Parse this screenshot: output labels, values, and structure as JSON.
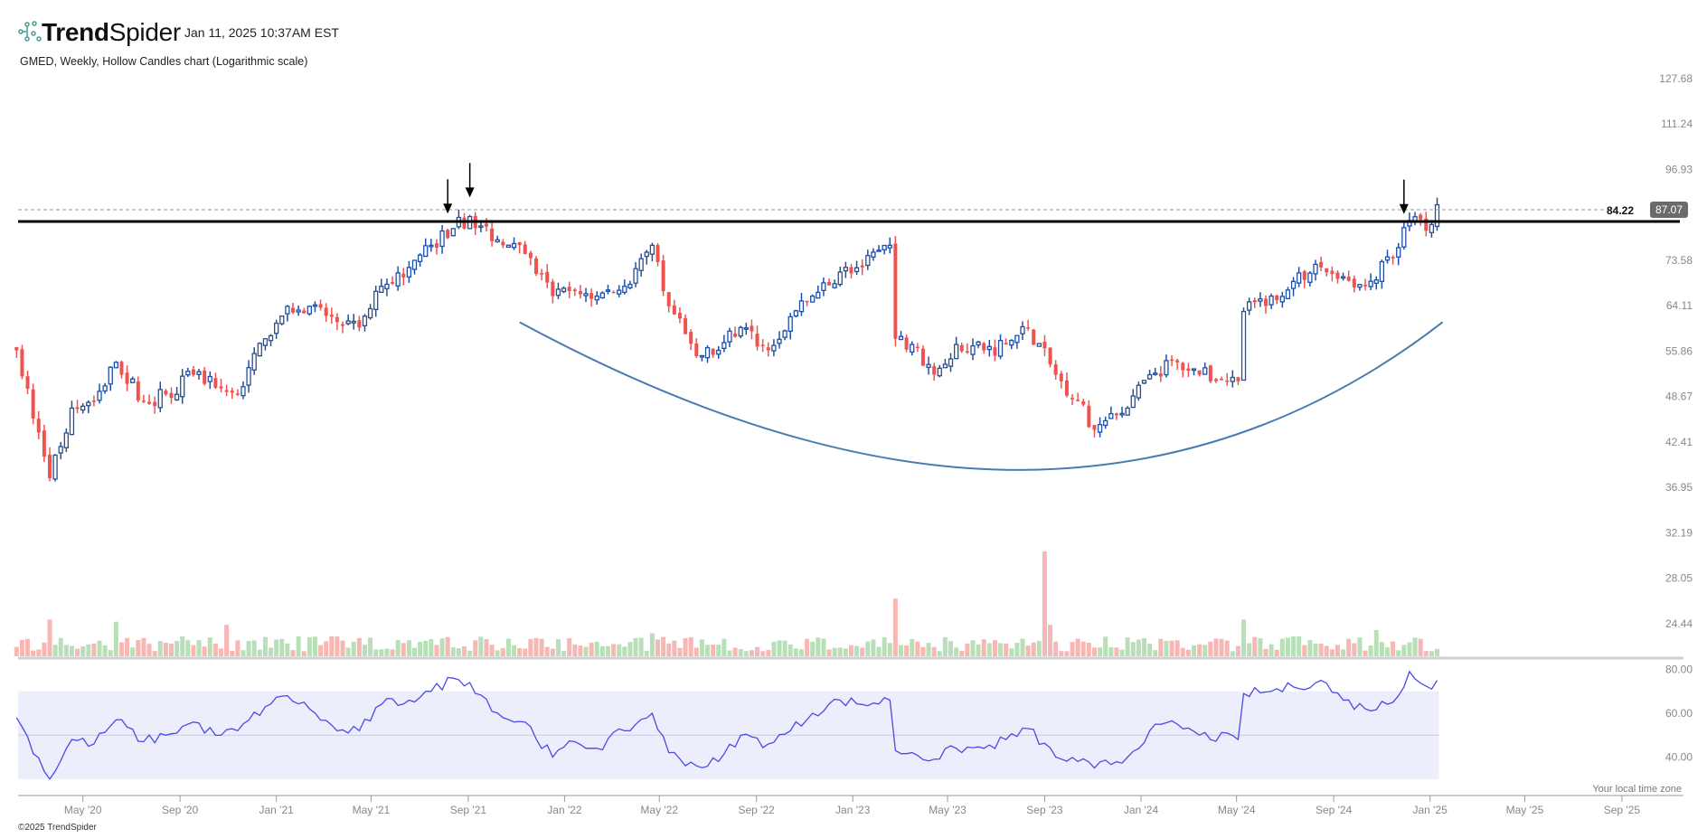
{
  "header": {
    "brand_bold": "Trend",
    "brand_light": "Spider",
    "timestamp": "Jan 11, 2025 10:37AM EST",
    "subtitle": "GMED, Weekly, Hollow Candles chart (Logarithmic scale)"
  },
  "footer": {
    "timezone_note": "Your local time zone",
    "copyright": "©2025 TrendSpider"
  },
  "colors": {
    "up": "#1f4fa3",
    "down": "#ef5350",
    "volume_up": "#b9dfb9",
    "volume_down": "#f7b7b5",
    "rsi_line": "#4a4ae6",
    "rsi_band": "#eceefb",
    "curve": "#4a7bb0",
    "resistance": "#000000",
    "badge": "#6b6b6b"
  },
  "chart_data": [
    {
      "type": "candlestick",
      "title": "GMED, Weekly, Hollow Candles chart (Logarithmic scale)",
      "scale": "log",
      "interval": "weekly",
      "ylim": [
        24.44,
        127.68
      ],
      "y_ticks": [
        "127.68",
        "111.24",
        "96.93",
        "84.22",
        "73.58",
        "64.11",
        "55.86",
        "48.67",
        "42.41",
        "36.95",
        "32.19",
        "28.05",
        "24.44"
      ],
      "x_ticks": [
        "May '20",
        "Sep '20",
        "Jan '21",
        "May '21",
        "Sep '21",
        "Jan '22",
        "May '22",
        "Sep '22",
        "Jan '23",
        "May '23",
        "Sep '23",
        "Jan '24",
        "May '24",
        "Sep '24",
        "Jan '25",
        "May '25",
        "Sep '25"
      ],
      "x_tick_dates": [
        "2020-05-01",
        "2020-09-01",
        "2021-01-01",
        "2021-05-01",
        "2021-09-01",
        "2022-01-01",
        "2022-05-01",
        "2022-09-01",
        "2023-01-01",
        "2023-05-01",
        "2023-09-01",
        "2024-01-01",
        "2024-05-01",
        "2024-09-01",
        "2025-01-01",
        "2025-05-01",
        "2025-09-01"
      ],
      "range": [
        "2020-02-07",
        "2025-01-10"
      ],
      "close_keypoints": [
        [
          "2020-02-07",
          56
        ],
        [
          "2020-03-20",
          38
        ],
        [
          "2020-04-17",
          47
        ],
        [
          "2020-05-15",
          48
        ],
        [
          "2020-06-12",
          54
        ],
        [
          "2020-07-17",
          48
        ],
        [
          "2020-08-14",
          49
        ],
        [
          "2020-09-18",
          52
        ],
        [
          "2020-10-16",
          50
        ],
        [
          "2020-11-13",
          49
        ],
        [
          "2020-12-18",
          58
        ],
        [
          "2021-01-15",
          64
        ],
        [
          "2021-02-12",
          64
        ],
        [
          "2021-03-19",
          61
        ],
        [
          "2021-04-16",
          60
        ],
        [
          "2021-05-14",
          68
        ],
        [
          "2021-06-18",
          72
        ],
        [
          "2021-07-16",
          77
        ],
        [
          "2021-08-13",
          81
        ],
        [
          "2021-09-03",
          84
        ],
        [
          "2021-10-15",
          77
        ],
        [
          "2021-11-12",
          75
        ],
        [
          "2021-12-17",
          66
        ],
        [
          "2022-01-14",
          67
        ],
        [
          "2022-02-11",
          66
        ],
        [
          "2022-03-18",
          68
        ],
        [
          "2022-04-22",
          77
        ],
        [
          "2022-05-13",
          64
        ],
        [
          "2022-06-17",
          55
        ],
        [
          "2022-07-15",
          56
        ],
        [
          "2022-08-12",
          60
        ],
        [
          "2022-09-16",
          56
        ],
        [
          "2022-10-14",
          62
        ],
        [
          "2022-11-11",
          66
        ],
        [
          "2022-12-16",
          71
        ],
        [
          "2023-01-13",
          72
        ],
        [
          "2023-02-17",
          77
        ],
        [
          "2023-02-24",
          58
        ],
        [
          "2023-03-17",
          57
        ],
        [
          "2023-04-14",
          52
        ],
        [
          "2023-05-12",
          57
        ],
        [
          "2023-06-16",
          56
        ],
        [
          "2023-07-14",
          57
        ],
        [
          "2023-08-11",
          60
        ],
        [
          "2023-09-15",
          52
        ],
        [
          "2023-10-13",
          48
        ],
        [
          "2023-11-03",
          44
        ],
        [
          "2023-12-15",
          47
        ],
        [
          "2024-01-12",
          52
        ],
        [
          "2024-02-16",
          54
        ],
        [
          "2024-03-15",
          52
        ],
        [
          "2024-05-03",
          51
        ],
        [
          "2024-05-10",
          63
        ],
        [
          "2024-06-14",
          66
        ],
        [
          "2024-07-12",
          69
        ],
        [
          "2024-08-16",
          72
        ],
        [
          "2024-09-13",
          70
        ],
        [
          "2024-10-11",
          68
        ],
        [
          "2024-11-15",
          74
        ],
        [
          "2024-12-06",
          83
        ],
        [
          "2025-01-03",
          82
        ],
        [
          "2025-01-10",
          87.07
        ]
      ],
      "last_price": "87.07",
      "resistance_label": "84.22",
      "resistance_level": 84.22,
      "annotation_arrows": [
        "2021-08-06",
        "2021-09-03",
        "2024-11-29"
      ],
      "rounding_bottom_curve": [
        [
          "2021-11-05",
          61
        ],
        [
          "2023-08-25",
          39
        ],
        [
          "2025-01-17",
          61
        ]
      ]
    },
    {
      "type": "bar",
      "series_label": "",
      "volume_relative_spikes": [
        [
          "2020-03-20",
          0.35
        ],
        [
          "2020-06-12",
          0.33
        ],
        [
          "2020-10-30",
          0.3
        ],
        [
          "2022-04-22",
          0.22
        ],
        [
          "2023-02-24",
          0.55
        ],
        [
          "2023-09-01",
          1.0
        ],
        [
          "2023-09-08",
          0.3
        ],
        [
          "2024-05-10",
          0.35
        ],
        [
          "2024-10-25",
          0.25
        ]
      ],
      "volume_relative_base": 0.12
    },
    {
      "type": "line",
      "indicator": "RSI",
      "ylim": [
        30,
        80
      ],
      "y_ticks": [
        "80.00",
        "60.00",
        "40.00"
      ],
      "band": [
        30,
        70
      ],
      "midline": 50,
      "keypoints": [
        [
          "2020-02-07",
          58
        ],
        [
          "2020-03-20",
          30
        ],
        [
          "2020-04-17",
          48
        ],
        [
          "2020-05-15",
          46
        ],
        [
          "2020-06-12",
          57
        ],
        [
          "2020-07-17",
          47
        ],
        [
          "2020-08-14",
          50
        ],
        [
          "2020-09-18",
          56
        ],
        [
          "2020-10-16",
          50
        ],
        [
          "2020-11-13",
          52
        ],
        [
          "2020-12-18",
          63
        ],
        [
          "2021-01-15",
          68
        ],
        [
          "2021-02-12",
          62
        ],
        [
          "2021-03-19",
          52
        ],
        [
          "2021-04-16",
          52
        ],
        [
          "2021-05-14",
          64
        ],
        [
          "2021-06-18",
          66
        ],
        [
          "2021-07-16",
          70
        ],
        [
          "2021-08-13",
          76
        ],
        [
          "2021-09-03",
          74
        ],
        [
          "2021-10-15",
          58
        ],
        [
          "2021-11-12",
          56
        ],
        [
          "2021-12-17",
          40
        ],
        [
          "2022-01-14",
          47
        ],
        [
          "2022-02-11",
          44
        ],
        [
          "2022-03-18",
          52
        ],
        [
          "2022-04-22",
          60
        ],
        [
          "2022-05-13",
          42
        ],
        [
          "2022-06-17",
          36
        ],
        [
          "2022-07-15",
          38
        ],
        [
          "2022-08-12",
          50
        ],
        [
          "2022-09-16",
          46
        ],
        [
          "2022-10-14",
          52
        ],
        [
          "2022-11-11",
          60
        ],
        [
          "2022-12-16",
          66
        ],
        [
          "2023-01-13",
          64
        ],
        [
          "2023-02-17",
          66
        ],
        [
          "2023-02-24",
          43
        ],
        [
          "2023-03-17",
          42
        ],
        [
          "2023-04-14",
          39
        ],
        [
          "2023-05-12",
          44
        ],
        [
          "2023-06-16",
          44
        ],
        [
          "2023-07-14",
          48
        ],
        [
          "2023-08-11",
          53
        ],
        [
          "2023-09-15",
          40
        ],
        [
          "2023-10-13",
          38
        ],
        [
          "2023-11-03",
          35
        ],
        [
          "2023-12-15",
          40
        ],
        [
          "2024-01-12",
          52
        ],
        [
          "2024-02-16",
          55
        ],
        [
          "2024-03-15",
          50
        ],
        [
          "2024-05-03",
          48
        ],
        [
          "2024-05-10",
          69
        ],
        [
          "2024-06-14",
          70
        ],
        [
          "2024-07-12",
          72
        ],
        [
          "2024-08-16",
          75
        ],
        [
          "2024-09-13",
          66
        ],
        [
          "2024-10-11",
          62
        ],
        [
          "2024-11-15",
          65
        ],
        [
          "2024-12-06",
          79
        ],
        [
          "2025-01-03",
          71
        ],
        [
          "2025-01-10",
          75
        ]
      ]
    }
  ]
}
